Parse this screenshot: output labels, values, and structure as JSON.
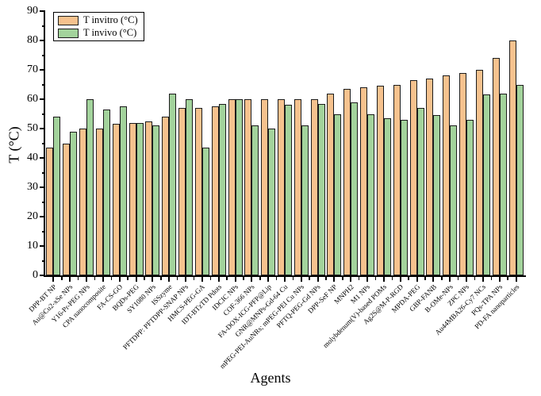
{
  "chart_data": {
    "type": "bar",
    "title": "",
    "xlabel": "Agents",
    "ylabel": "T (°C)",
    "ylim": [
      0,
      90
    ],
    "yticks": [
      0,
      10,
      20,
      30,
      40,
      50,
      60,
      70,
      80,
      90
    ],
    "ytick_minor_step": 5,
    "grid": false,
    "legend_position": "top-left",
    "categories": [
      "DPP-BT NP",
      "Au@Cu2-xSe NPs",
      "Y16-Pr-PEG NPs",
      "CPA nanocomposite",
      "FA-CS-GO",
      "BQDs-PEG",
      "SY1080 NPs",
      "ISSzyme",
      "PFTDPP: PFTDPP-SNAP NPs",
      "HMCS-PEG-GA",
      "IDT-BTzTD Pdots",
      "IDCIC NPs",
      "COF-366 NPs",
      "FA-DOX-ICG-PFP@Lip",
      "GNR@MNPs-Gd-64 Cu",
      "mPEG-PEI-AuNRs; mPEG-PEI Cu NPs",
      "PFTQ-PEG-Gd NPs",
      "DPP-SeF NP",
      "MNPH2",
      "M1 NPs",
      "molybdenum(V)-based POMs",
      "Ag2S@M-P-RGD",
      "MPDA-PEG",
      "GBP-FANB",
      "B-OMe-NPs",
      "ZPC NPs",
      "Au44MBA26-Cy7 NCs",
      "PQs-TPA NPs",
      "PD-FA nanoparticles"
    ],
    "series": [
      {
        "name": "T invitro (°C)",
        "color": "#F6C28E",
        "values": [
          43.5,
          45,
          50,
          50,
          51.5,
          52,
          52.5,
          54,
          57,
          57,
          57.5,
          60,
          60,
          60,
          60,
          60,
          60,
          62,
          63.5,
          64,
          64.5,
          65,
          66.5,
          67,
          68,
          69,
          70,
          74,
          80
        ]
      },
      {
        "name": "T invivo (°C)",
        "color": "#A3D39C",
        "values": [
          54,
          49,
          60,
          56.5,
          57.5,
          52,
          51,
          62,
          60,
          43.5,
          58.5,
          60,
          51,
          50,
          58,
          51,
          58.5,
          55,
          59,
          55,
          53.5,
          53,
          57,
          54.5,
          51,
          53,
          61.5,
          62,
          65
        ]
      }
    ],
    "bar_border_color": "#1c1c1c",
    "axis_color": "#000000",
    "background_color": "#ffffff"
  }
}
